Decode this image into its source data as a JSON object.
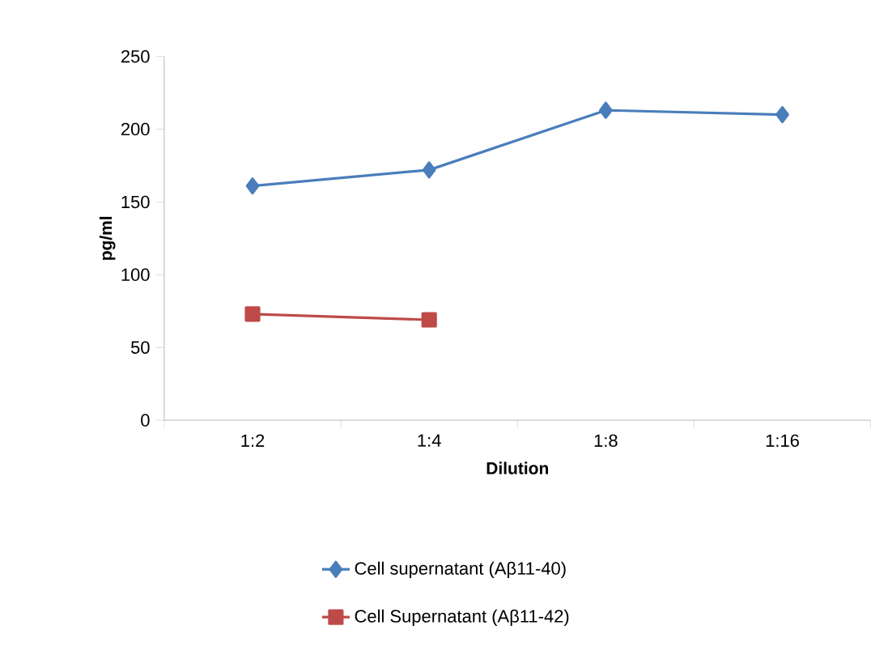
{
  "chart_data": {
    "type": "line",
    "xlabel": "Dilution",
    "ylabel": "pg/ml",
    "categories": [
      "1:2",
      "1:4",
      "1:8",
      "1:16"
    ],
    "series": [
      {
        "name": "Cell supernatant (Aβ11-40)",
        "color": "#4a7ebb",
        "marker": "diamond",
        "values": [
          161,
          172,
          213,
          210
        ]
      },
      {
        "name": "Cell Supernatant (Aβ11-42)",
        "color": "#be4b48",
        "marker": "square",
        "values": [
          73,
          69,
          null,
          null
        ]
      }
    ],
    "ylim": [
      0,
      250
    ],
    "yticks": [
      0,
      50,
      100,
      150,
      200,
      250
    ],
    "grid": false,
    "legend": "bottom",
    "line_style": "solid"
  }
}
